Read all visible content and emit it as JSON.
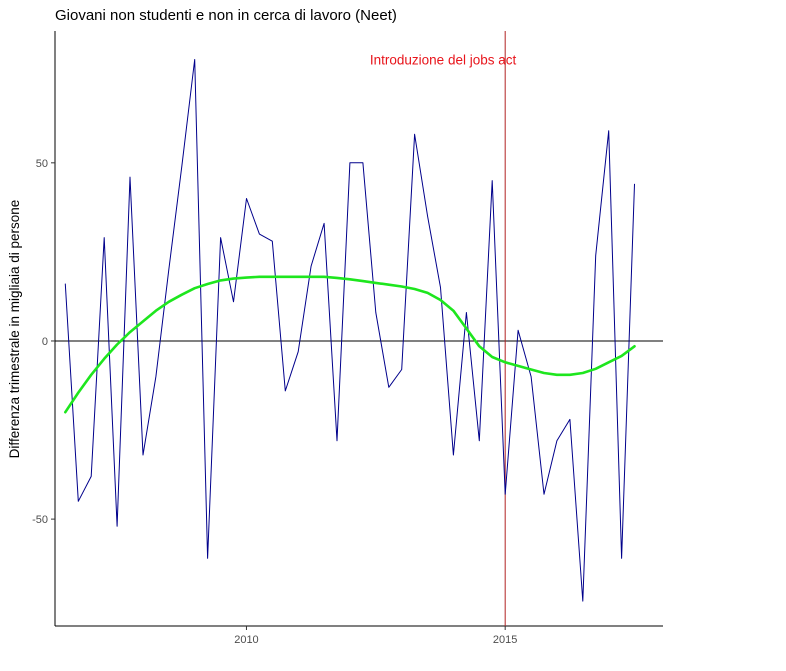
{
  "chart_data": {
    "type": "line",
    "title": "Giovani non studenti e non in cerca di lavoro (Neet)",
    "xlabel": "",
    "ylabel": "Differenza trimestrale in migliaia di persone",
    "xlim": [
      2006.3,
      2018.05
    ],
    "ylim": [
      -80,
      87
    ],
    "x_ticks": [
      {
        "value": 2010,
        "label": "2010"
      },
      {
        "value": 2015,
        "label": "2015"
      }
    ],
    "y_ticks": [
      {
        "value": -50,
        "label": "-50"
      },
      {
        "value": 0,
        "label": "0"
      },
      {
        "value": 50,
        "label": "50"
      }
    ],
    "grid": false,
    "legend": "none",
    "hline": {
      "y": 0,
      "color": "#000000"
    },
    "vline": {
      "x": 2015,
      "color": "#B22222"
    },
    "annotation": {
      "text": "Introduzione del jobs act",
      "x": 2013.8,
      "y": 79,
      "color": "#E8141B"
    },
    "series": [
      {
        "color": "#00008B",
        "x": [
          2006.5,
          2006.75,
          2007.0,
          2007.25,
          2007.5,
          2007.75,
          2008.0,
          2008.25,
          2008.5,
          2008.75,
          2009.0,
          2009.25,
          2009.5,
          2009.75,
          2010.0,
          2010.25,
          2010.5,
          2010.75,
          2011.0,
          2011.25,
          2011.5,
          2011.75,
          2012.0,
          2012.25,
          2012.5,
          2012.75,
          2013.0,
          2013.25,
          2013.5,
          2013.75,
          2014.0,
          2014.25,
          2014.5,
          2014.75,
          2015.0,
          2015.25,
          2015.5,
          2015.75,
          2016.0,
          2016.25,
          2016.5,
          2016.75,
          2017.0,
          2017.25,
          2017.5
        ],
        "values": [
          16,
          -45,
          -38,
          29,
          -52,
          46,
          -32,
          -10,
          20,
          49,
          79,
          -61,
          29,
          11,
          40,
          30,
          28,
          -14,
          -3,
          21,
          33,
          -28,
          50,
          50,
          8,
          -13,
          -8,
          58,
          35,
          15,
          -32,
          8,
          -28,
          45,
          -43,
          3,
          -10,
          -43,
          -28,
          -22,
          -73,
          24,
          59,
          -61,
          44
        ]
      },
      {
        "color": "#1EE61E",
        "x": [
          2006.5,
          2006.75,
          2007.0,
          2007.25,
          2007.5,
          2007.75,
          2008.0,
          2008.25,
          2008.5,
          2008.75,
          2009.0,
          2009.25,
          2009.5,
          2009.75,
          2010.0,
          2010.25,
          2010.5,
          2010.75,
          2011.0,
          2011.25,
          2011.5,
          2011.75,
          2012.0,
          2012.25,
          2012.5,
          2012.75,
          2013.0,
          2013.25,
          2013.5,
          2013.75,
          2014.0,
          2014.25,
          2014.5,
          2014.75,
          2015.0,
          2015.25,
          2015.5,
          2015.75,
          2016.0,
          2016.25,
          2016.5,
          2016.75,
          2017.0,
          2017.25,
          2017.5
        ],
        "values": [
          -20,
          -14.5,
          -9.5,
          -5,
          -1,
          2.5,
          5.5,
          8.5,
          11,
          13,
          14.8,
          16,
          17,
          17.5,
          17.8,
          18,
          18,
          18,
          18,
          18,
          18,
          17.7,
          17.3,
          16.8,
          16.3,
          15.8,
          15.3,
          14.6,
          13.5,
          11.5,
          8.5,
          3.5,
          -1.5,
          -4.5,
          -6,
          -7,
          -8,
          -9,
          -9.5,
          -9.5,
          -9,
          -7.8,
          -6,
          -4.2,
          -1.5
        ]
      }
    ]
  }
}
